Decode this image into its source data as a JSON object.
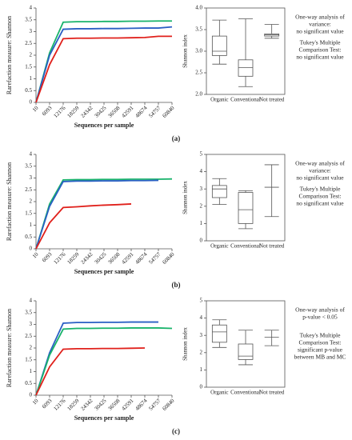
{
  "chart_data": [
    {
      "type": "line",
      "panel_label": "(a)",
      "y_label": "Rarefaction measure: Shannon",
      "x_label": "Sequences per sample",
      "x": [
        10,
        6093,
        12176,
        18259,
        24342,
        30425,
        36508,
        42591,
        48674,
        54757,
        60840
      ],
      "xlim": [
        10,
        60840
      ],
      "xticks": [
        10,
        6093,
        12176,
        18259,
        24342,
        30425,
        36508,
        42591,
        48674,
        54757,
        60840
      ],
      "ylim": [
        0,
        4
      ],
      "yticks": [
        0,
        0.5,
        1,
        1.5,
        2,
        2.5,
        3,
        3.5,
        4
      ],
      "series": [
        {
          "color": "#19b36b",
          "values": [
            0,
            2.1,
            3.4,
            3.42,
            3.42,
            3.43,
            3.43,
            3.44,
            3.44,
            3.45,
            3.45
          ]
        },
        {
          "color": "#2a5fc4",
          "values": [
            0,
            2.0,
            3.1,
            3.12,
            3.12,
            3.13,
            3.13,
            3.14,
            3.15,
            3.15,
            3.2
          ]
        },
        {
          "color": "#e0201b",
          "values": [
            0,
            1.6,
            2.7,
            2.72,
            2.72,
            2.73,
            2.73,
            2.74,
            2.75,
            2.8,
            2.8
          ]
        }
      ]
    },
    {
      "type": "box",
      "y_label": "Shannon index",
      "categories": [
        "Organic",
        "Conventional",
        "Not treated"
      ],
      "ylim": [
        2,
        4
      ],
      "yticks": [
        {
          "value": 2,
          "label": "2.0"
        },
        {
          "value": 2.5,
          "label": "2.5"
        },
        {
          "value": 3,
          "label": "3.0"
        },
        {
          "value": 3.5,
          "label": "3.5"
        },
        {
          "value": 4,
          "label": "4.0"
        }
      ],
      "boxes": [
        {
          "min": 2.7,
          "q1": 2.9,
          "median": 3.0,
          "q3": 3.35,
          "max": 3.72
        },
        {
          "min": 2.18,
          "q1": 2.42,
          "median": 2.62,
          "q3": 2.8,
          "max": 3.75
        },
        {
          "min": 3.3,
          "q1": 3.35,
          "median": 3.38,
          "q3": 3.4,
          "max": 3.62
        }
      ],
      "annotations": [
        "One-way analysis of",
        "variance:",
        "no significant value",
        "Tukey's Multiple",
        "Comparison Test:",
        "no significant value"
      ]
    },
    {
      "type": "line",
      "panel_label": "(b)",
      "y_label": "Rarefaction measure: Shannon",
      "x_label": "Sequences per sample",
      "x": [
        10,
        6093,
        12176,
        18259,
        24342,
        30425,
        36508,
        42591,
        48674,
        54757,
        60840
      ],
      "xlim": [
        10,
        60840
      ],
      "xticks": [
        10,
        6093,
        12176,
        18259,
        24342,
        30425,
        36508,
        42591,
        48674,
        54757,
        60840
      ],
      "ylim": [
        0,
        4
      ],
      "yticks": [
        0,
        0.5,
        1,
        1.5,
        2,
        2.5,
        3,
        3.5,
        4
      ],
      "series": [
        {
          "color": "#19b36b",
          "values": [
            0,
            1.9,
            2.92,
            2.93,
            2.93,
            2.94,
            2.94,
            2.95,
            2.95,
            2.95,
            2.96
          ]
        },
        {
          "color": "#2a5fc4",
          "values": [
            0,
            1.8,
            2.85,
            2.87,
            2.87,
            2.88,
            2.88,
            2.89,
            2.89,
            2.9,
            null
          ]
        },
        {
          "color": "#e0201b",
          "values": [
            0,
            1.1,
            1.75,
            1.78,
            1.82,
            1.85,
            1.87,
            1.9,
            null,
            null,
            null
          ]
        }
      ]
    },
    {
      "type": "box",
      "y_label": "Shannon index",
      "categories": [
        "Organic",
        "Conventional",
        "Not treated"
      ],
      "ylim": [
        0,
        5
      ],
      "yticks": [
        0,
        1,
        2,
        3,
        4,
        5
      ],
      "boxes": [
        {
          "min": 2.1,
          "q1": 2.5,
          "median": 3.0,
          "q3": 3.2,
          "max": 3.6
        },
        {
          "min": 0.7,
          "q1": 1.0,
          "median": 1.8,
          "q3": 2.8,
          "max": 2.9
        },
        {
          "min": 1.4,
          "q1": 3.1,
          "median": 3.1,
          "q3": 3.1,
          "max": 4.4
        }
      ],
      "annotations": [
        "One-way analysis of",
        "variance:",
        "no significant value",
        "Tukey's Multiple",
        "Comparison Test:",
        "no significant value"
      ]
    },
    {
      "type": "line",
      "panel_label": "(c)",
      "y_label": "Rarefaction measure: Shannon",
      "x_label": "Sequences per sample",
      "x": [
        10,
        6093,
        12176,
        18259,
        24342,
        30425,
        36508,
        42591,
        48674,
        54757,
        60840
      ],
      "xlim": [
        10,
        60840
      ],
      "xticks": [
        10,
        6093,
        12176,
        18259,
        24342,
        30425,
        36508,
        42591,
        48674,
        54757,
        60840
      ],
      "ylim": [
        0,
        4
      ],
      "yticks": [
        0,
        0.5,
        1,
        1.5,
        2,
        2.5,
        3,
        3.5,
        4
      ],
      "series": [
        {
          "color": "#2a5fc4",
          "values": [
            0,
            1.8,
            3.05,
            3.08,
            3.08,
            3.09,
            3.09,
            3.1,
            3.1,
            3.1,
            null
          ]
        },
        {
          "color": "#19b36b",
          "values": [
            0,
            1.7,
            2.8,
            2.83,
            2.83,
            2.84,
            2.84,
            2.85,
            2.85,
            2.85,
            2.83
          ]
        },
        {
          "color": "#e0201b",
          "values": [
            0,
            1.2,
            1.95,
            1.97,
            1.97,
            1.98,
            1.98,
            1.99,
            2.0,
            null,
            null
          ]
        }
      ]
    },
    {
      "type": "box",
      "y_label": "Shannon index",
      "categories": [
        "Organic",
        "Conventional",
        "Not treated"
      ],
      "ylim": [
        0,
        5
      ],
      "yticks": [
        0,
        1,
        2,
        3,
        4,
        5
      ],
      "boxes": [
        {
          "min": 2.3,
          "q1": 2.6,
          "median": 3.2,
          "q3": 3.6,
          "max": 3.9
        },
        {
          "min": 1.3,
          "q1": 1.6,
          "median": 1.8,
          "q3": 2.5,
          "max": 3.3
        },
        {
          "min": 2.4,
          "q1": 2.9,
          "median": 2.9,
          "q3": 2.9,
          "max": 3.3
        }
      ],
      "annotations": [
        "One-way analysis of",
        "p-value < 0.05",
        "",
        "Tukey's Multiple",
        "Comparison Test:",
        "significant p-value",
        "between MB and MC"
      ]
    }
  ]
}
